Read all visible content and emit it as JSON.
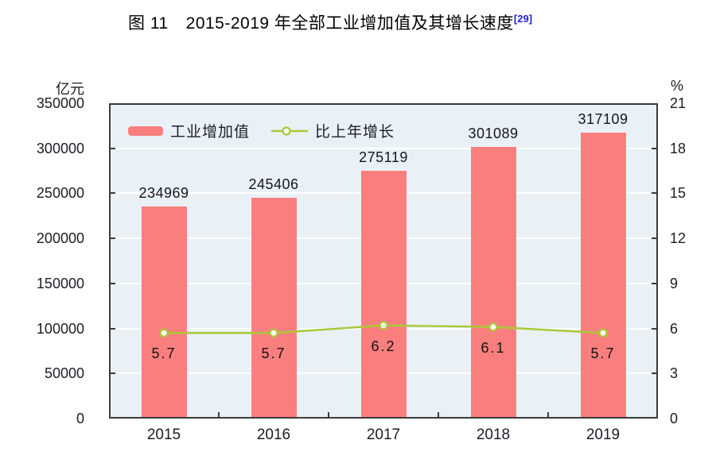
{
  "title": {
    "prefix": "图 11",
    "main": "2015-2019 年全部工业增加值及其增长速度",
    "ref": "[29]"
  },
  "colors": {
    "bar": "#f97f7f",
    "line": "#a9c93a",
    "marker_fill": "#fdfff2",
    "plot_bg": "#e9f1f6",
    "grid": "#ffffff",
    "axis": "#3b3b3b",
    "text": "#1c1c24",
    "ref_blue": "#2222cc"
  },
  "chart_data": {
    "type": "bar",
    "title": "图 11 2015-2019 年全部工业增加值及其增长速度[29]",
    "categories": [
      "2015",
      "2016",
      "2017",
      "2018",
      "2019"
    ],
    "series": [
      {
        "name": "工业增加值",
        "chart_type": "bar",
        "axis": "left",
        "unit": "亿元",
        "values": [
          234969,
          245406,
          275119,
          301089,
          317109
        ],
        "labels": [
          "234969",
          "245406",
          "275119",
          "301089",
          "317109"
        ]
      },
      {
        "name": "比上年增长",
        "chart_type": "line",
        "axis": "right",
        "unit": "%",
        "values": [
          5.7,
          5.7,
          6.2,
          6.1,
          5.7
        ],
        "labels": [
          "5.7",
          "5.7",
          "6.2",
          "6.1",
          "5.7"
        ]
      }
    ],
    "left_axis": {
      "label": "亿元",
      "min": 0,
      "max": 350000,
      "step": 50000,
      "ticks": [
        "0",
        "50000",
        "100000",
        "150000",
        "200000",
        "250000",
        "300000",
        "350000"
      ]
    },
    "right_axis": {
      "label": "%",
      "min": 0,
      "max": 21,
      "step": 3,
      "ticks": [
        "0",
        "3",
        "6",
        "9",
        "12",
        "15",
        "18",
        "21"
      ]
    },
    "grid": "horizontal-white",
    "legend_position": "top-left-inside",
    "xlabel": "",
    "ylabel_left": "亿元",
    "ylabel_right": "%"
  }
}
